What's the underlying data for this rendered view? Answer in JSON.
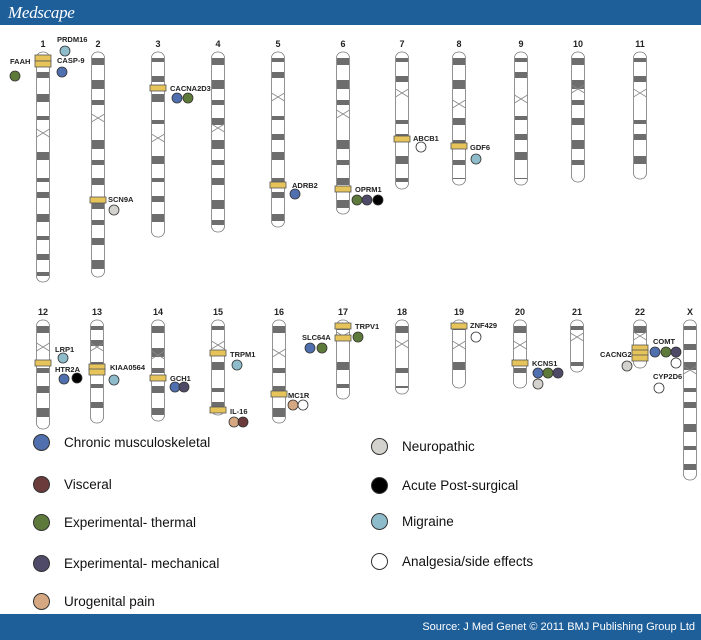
{
  "header": {
    "brand": "Medscape"
  },
  "footer": {
    "source": "Source: J Med Genet © 2011 BMJ Publishing Group Ltd"
  },
  "colors": {
    "chronic": "#4f6fae",
    "visceral": "#6b3a3a",
    "thermal": "#5e7a3a",
    "mechanical": "#4e4a68",
    "urogenital": "#d6a882",
    "neuropathic": "#d4d2cc",
    "acute": "#000000",
    "migraine": "#8fbccb",
    "analgesia": "#ffffff",
    "band": "#e6c45a",
    "header": "#1e5f9a"
  },
  "chromosomes": [
    "1",
    "2",
    "3",
    "4",
    "5",
    "6",
    "7",
    "8",
    "9",
    "10",
    "11",
    "12",
    "13",
    "14",
    "15",
    "16",
    "17",
    "18",
    "19",
    "20",
    "21",
    "22",
    "X"
  ],
  "genes": [
    "FAAH",
    "PRDM16",
    "CASP-9",
    "CACNA2D3",
    "SCN9A",
    "ADRB2",
    "OPRM1",
    "ABCB1",
    "GDF6",
    "LRP1",
    "HTR2A",
    "KIAA0564",
    "GCH1",
    "TRPM1",
    "IL-16",
    "MC1R",
    "SLC64A",
    "TRPV1",
    "ZNF429",
    "KCNS1",
    "CACNG2",
    "COMT",
    "CYP2D6"
  ],
  "legend": [
    {
      "key": "chronic",
      "label": "Chronic musculoskeletal"
    },
    {
      "key": "visceral",
      "label": "Visceral"
    },
    {
      "key": "thermal",
      "label": "Experimental- thermal"
    },
    {
      "key": "mechanical",
      "label": "Experimental- mechanical"
    },
    {
      "key": "urogenital",
      "label": "Urogenital pain"
    },
    {
      "key": "neuropathic",
      "label": "Neuropathic"
    },
    {
      "key": "acute",
      "label": "Acute Post-surgical"
    },
    {
      "key": "migraine",
      "label": "Migraine"
    },
    {
      "key": "analgesia",
      "label": "Analgesia/side effects"
    }
  ]
}
